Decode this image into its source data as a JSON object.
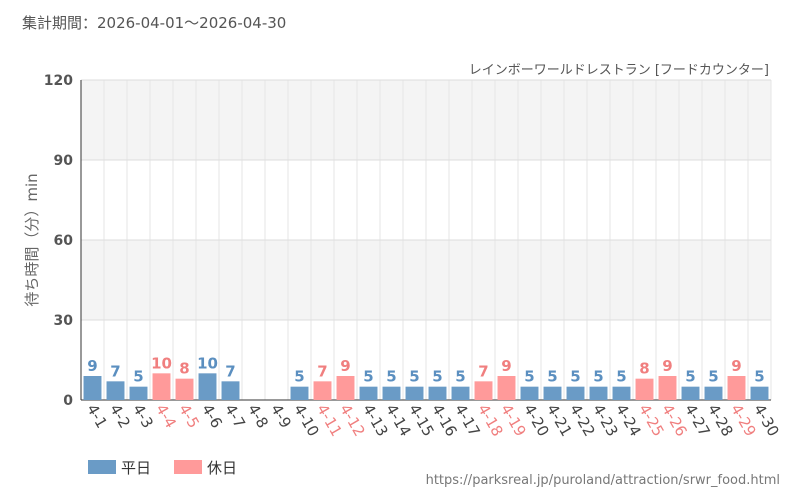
{
  "header": {
    "period_label": "集計期間：2026-04-01～2026-04-30",
    "subtitle": "レインボーワールドレストラン [フードカウンター]"
  },
  "footer": {
    "url": "https://parksreal.jp/puroland/attraction/srwr_food.html"
  },
  "colors": {
    "weekday": "#6a9bc6",
    "holiday": "#ff9a9a",
    "weekday_text": "#5b8fc0",
    "holiday_text": "#f07f7f"
  },
  "chart_data": {
    "type": "bar",
    "title": "",
    "ylabel": "待ち時間（分）min",
    "xlabel": "",
    "ylim": [
      0,
      120
    ],
    "yticks": [
      0,
      30,
      60,
      90,
      120
    ],
    "grid": true,
    "legend_position": "bottom-left",
    "categories": [
      "4-1",
      "4-2",
      "4-3",
      "4-4",
      "4-5",
      "4-6",
      "4-7",
      "4-8",
      "4-9",
      "4-10",
      "4-11",
      "4-12",
      "4-13",
      "4-14",
      "4-15",
      "4-16",
      "4-17",
      "4-18",
      "4-19",
      "4-20",
      "4-21",
      "4-22",
      "4-23",
      "4-24",
      "4-25",
      "4-26",
      "4-27",
      "4-28",
      "4-29",
      "4-30"
    ],
    "values": [
      9,
      7,
      5,
      10,
      8,
      10,
      7,
      null,
      null,
      5,
      7,
      9,
      5,
      5,
      5,
      5,
      5,
      7,
      9,
      5,
      5,
      5,
      5,
      5,
      8,
      9,
      5,
      5,
      9,
      5
    ],
    "day_type": [
      "weekday",
      "weekday",
      "weekday",
      "holiday",
      "holiday",
      "weekday",
      "weekday",
      "weekday",
      "weekday",
      "weekday",
      "holiday",
      "holiday",
      "weekday",
      "weekday",
      "weekday",
      "weekday",
      "weekday",
      "holiday",
      "holiday",
      "weekday",
      "weekday",
      "weekday",
      "weekday",
      "weekday",
      "holiday",
      "holiday",
      "weekday",
      "weekday",
      "holiday",
      "weekday"
    ],
    "legend": [
      {
        "key": "weekday",
        "label": "平日"
      },
      {
        "key": "holiday",
        "label": "休日"
      }
    ]
  }
}
